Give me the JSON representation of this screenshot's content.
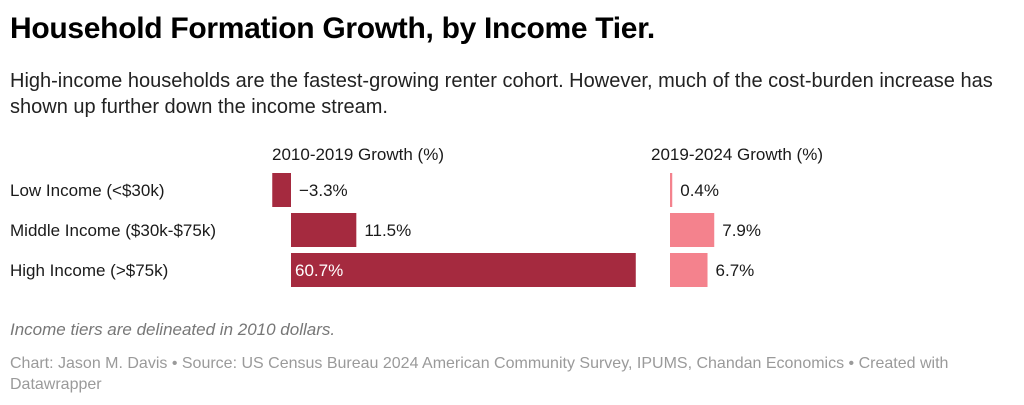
{
  "title": "Household Formation Growth, by Income Tier.",
  "subtitle": "High-income households are the fastest-growing renter cohort. However, much of the cost-burden increase has shown up further down the income stream.",
  "note": "Income tiers are delineated in 2010 dollars.",
  "credit": "Chart: Jason M. Davis • Source: US Census Bureau 2024 American Community Survey, IPUMS, Chandan Economics • Created with Datawrapper",
  "chart_data": {
    "type": "bar",
    "orientation": "horizontal",
    "categories": [
      "Low Income (<$30k)",
      "Middle Income ($30k-$75k)",
      "High Income (>$75k)"
    ],
    "series": [
      {
        "name": "2010-2019 Growth (%)",
        "values": [
          -3.3,
          11.5,
          60.7
        ],
        "labels": [
          "−3.3%",
          "11.5%",
          "60.7%"
        ],
        "color": "#a52a3f"
      },
      {
        "name": "2019-2024 Growth (%)",
        "values": [
          0.4,
          7.9,
          6.7
        ],
        "labels": [
          "0.4%",
          "7.9%",
          "6.7%"
        ],
        "color": "#f4828d"
      }
    ],
    "grid": false,
    "legend": "none"
  }
}
